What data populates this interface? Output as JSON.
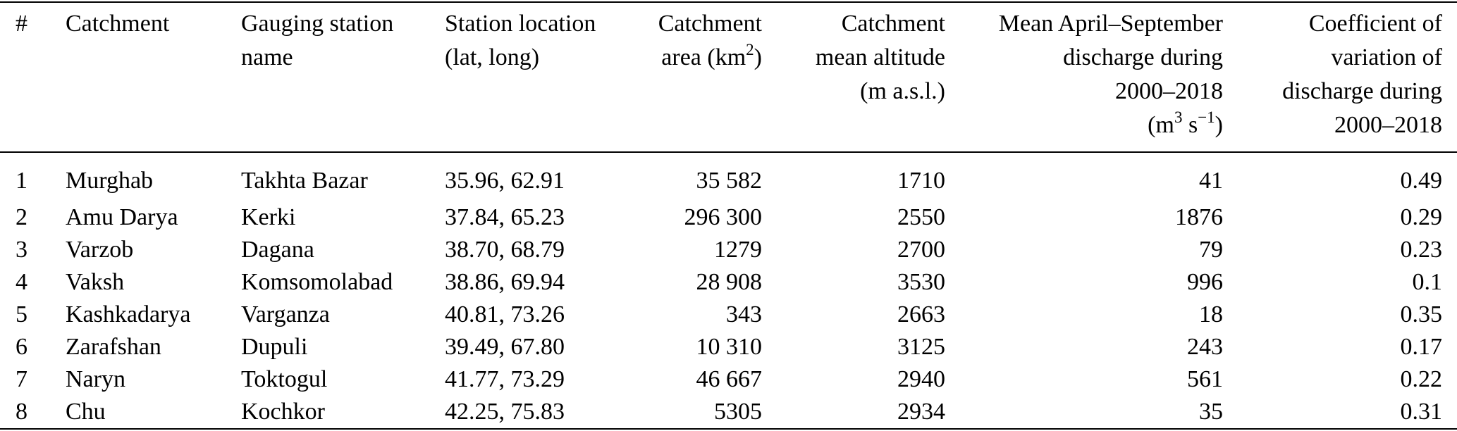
{
  "columns": [
    {
      "id": "num",
      "lines": [
        "#"
      ]
    },
    {
      "id": "catchment",
      "lines": [
        "Catchment"
      ]
    },
    {
      "id": "station",
      "lines": [
        "Gauging station",
        "name"
      ]
    },
    {
      "id": "location",
      "lines": [
        "Station location",
        "(lat, long)"
      ]
    },
    {
      "id": "area",
      "lines": [
        "Catchment",
        "area (km",
        "2",
        ")"
      ]
    },
    {
      "id": "altitude",
      "lines": [
        "Catchment",
        "mean altitude",
        "(m a.s.l.)"
      ]
    },
    {
      "id": "discharge",
      "lines": [
        "Mean April–September",
        "discharge during",
        "2000–2018",
        "(m",
        "3",
        " s",
        "−1",
        ")"
      ]
    },
    {
      "id": "cv",
      "lines": [
        "Coefficient of",
        "variation of",
        "discharge during",
        "2000–2018"
      ]
    }
  ],
  "rows": [
    {
      "num": "1",
      "catchment": "Murghab",
      "station": "Takhta Bazar",
      "location": "35.96, 62.91",
      "area": "35 582",
      "altitude": "1710",
      "discharge": "41",
      "cv": "0.49"
    },
    {
      "num": "2",
      "catchment": "Amu Darya",
      "station": "Kerki",
      "location": "37.84, 65.23",
      "area": "296 300",
      "altitude": "2550",
      "discharge": "1876",
      "cv": "0.29"
    },
    {
      "num": "3",
      "catchment": "Varzob",
      "station": "Dagana",
      "location": "38.70, 68.79",
      "area": "1279",
      "altitude": "2700",
      "discharge": "79",
      "cv": "0.23"
    },
    {
      "num": "4",
      "catchment": "Vaksh",
      "station": "Komsomolabad",
      "location": "38.86, 69.94",
      "area": "28 908",
      "altitude": "3530",
      "discharge": "996",
      "cv": "0.1"
    },
    {
      "num": "5",
      "catchment": "Kashkadarya",
      "station": "Varganza",
      "location": "40.81, 73.26",
      "area": "343",
      "altitude": "2663",
      "discharge": "18",
      "cv": "0.35"
    },
    {
      "num": "6",
      "catchment": "Zarafshan",
      "station": "Dupuli",
      "location": "39.49, 67.80",
      "area": "10 310",
      "altitude": "3125",
      "discharge": "243",
      "cv": "0.17"
    },
    {
      "num": "7",
      "catchment": "Naryn",
      "station": "Toktogul",
      "location": "41.77, 73.29",
      "area": "46 667",
      "altitude": "2940",
      "discharge": "561",
      "cv": "0.22"
    },
    {
      "num": "8",
      "catchment": "Chu",
      "station": "Kochkor",
      "location": "42.25, 75.83",
      "area": "5305",
      "altitude": "2934",
      "discharge": "35",
      "cv": "0.31"
    }
  ]
}
